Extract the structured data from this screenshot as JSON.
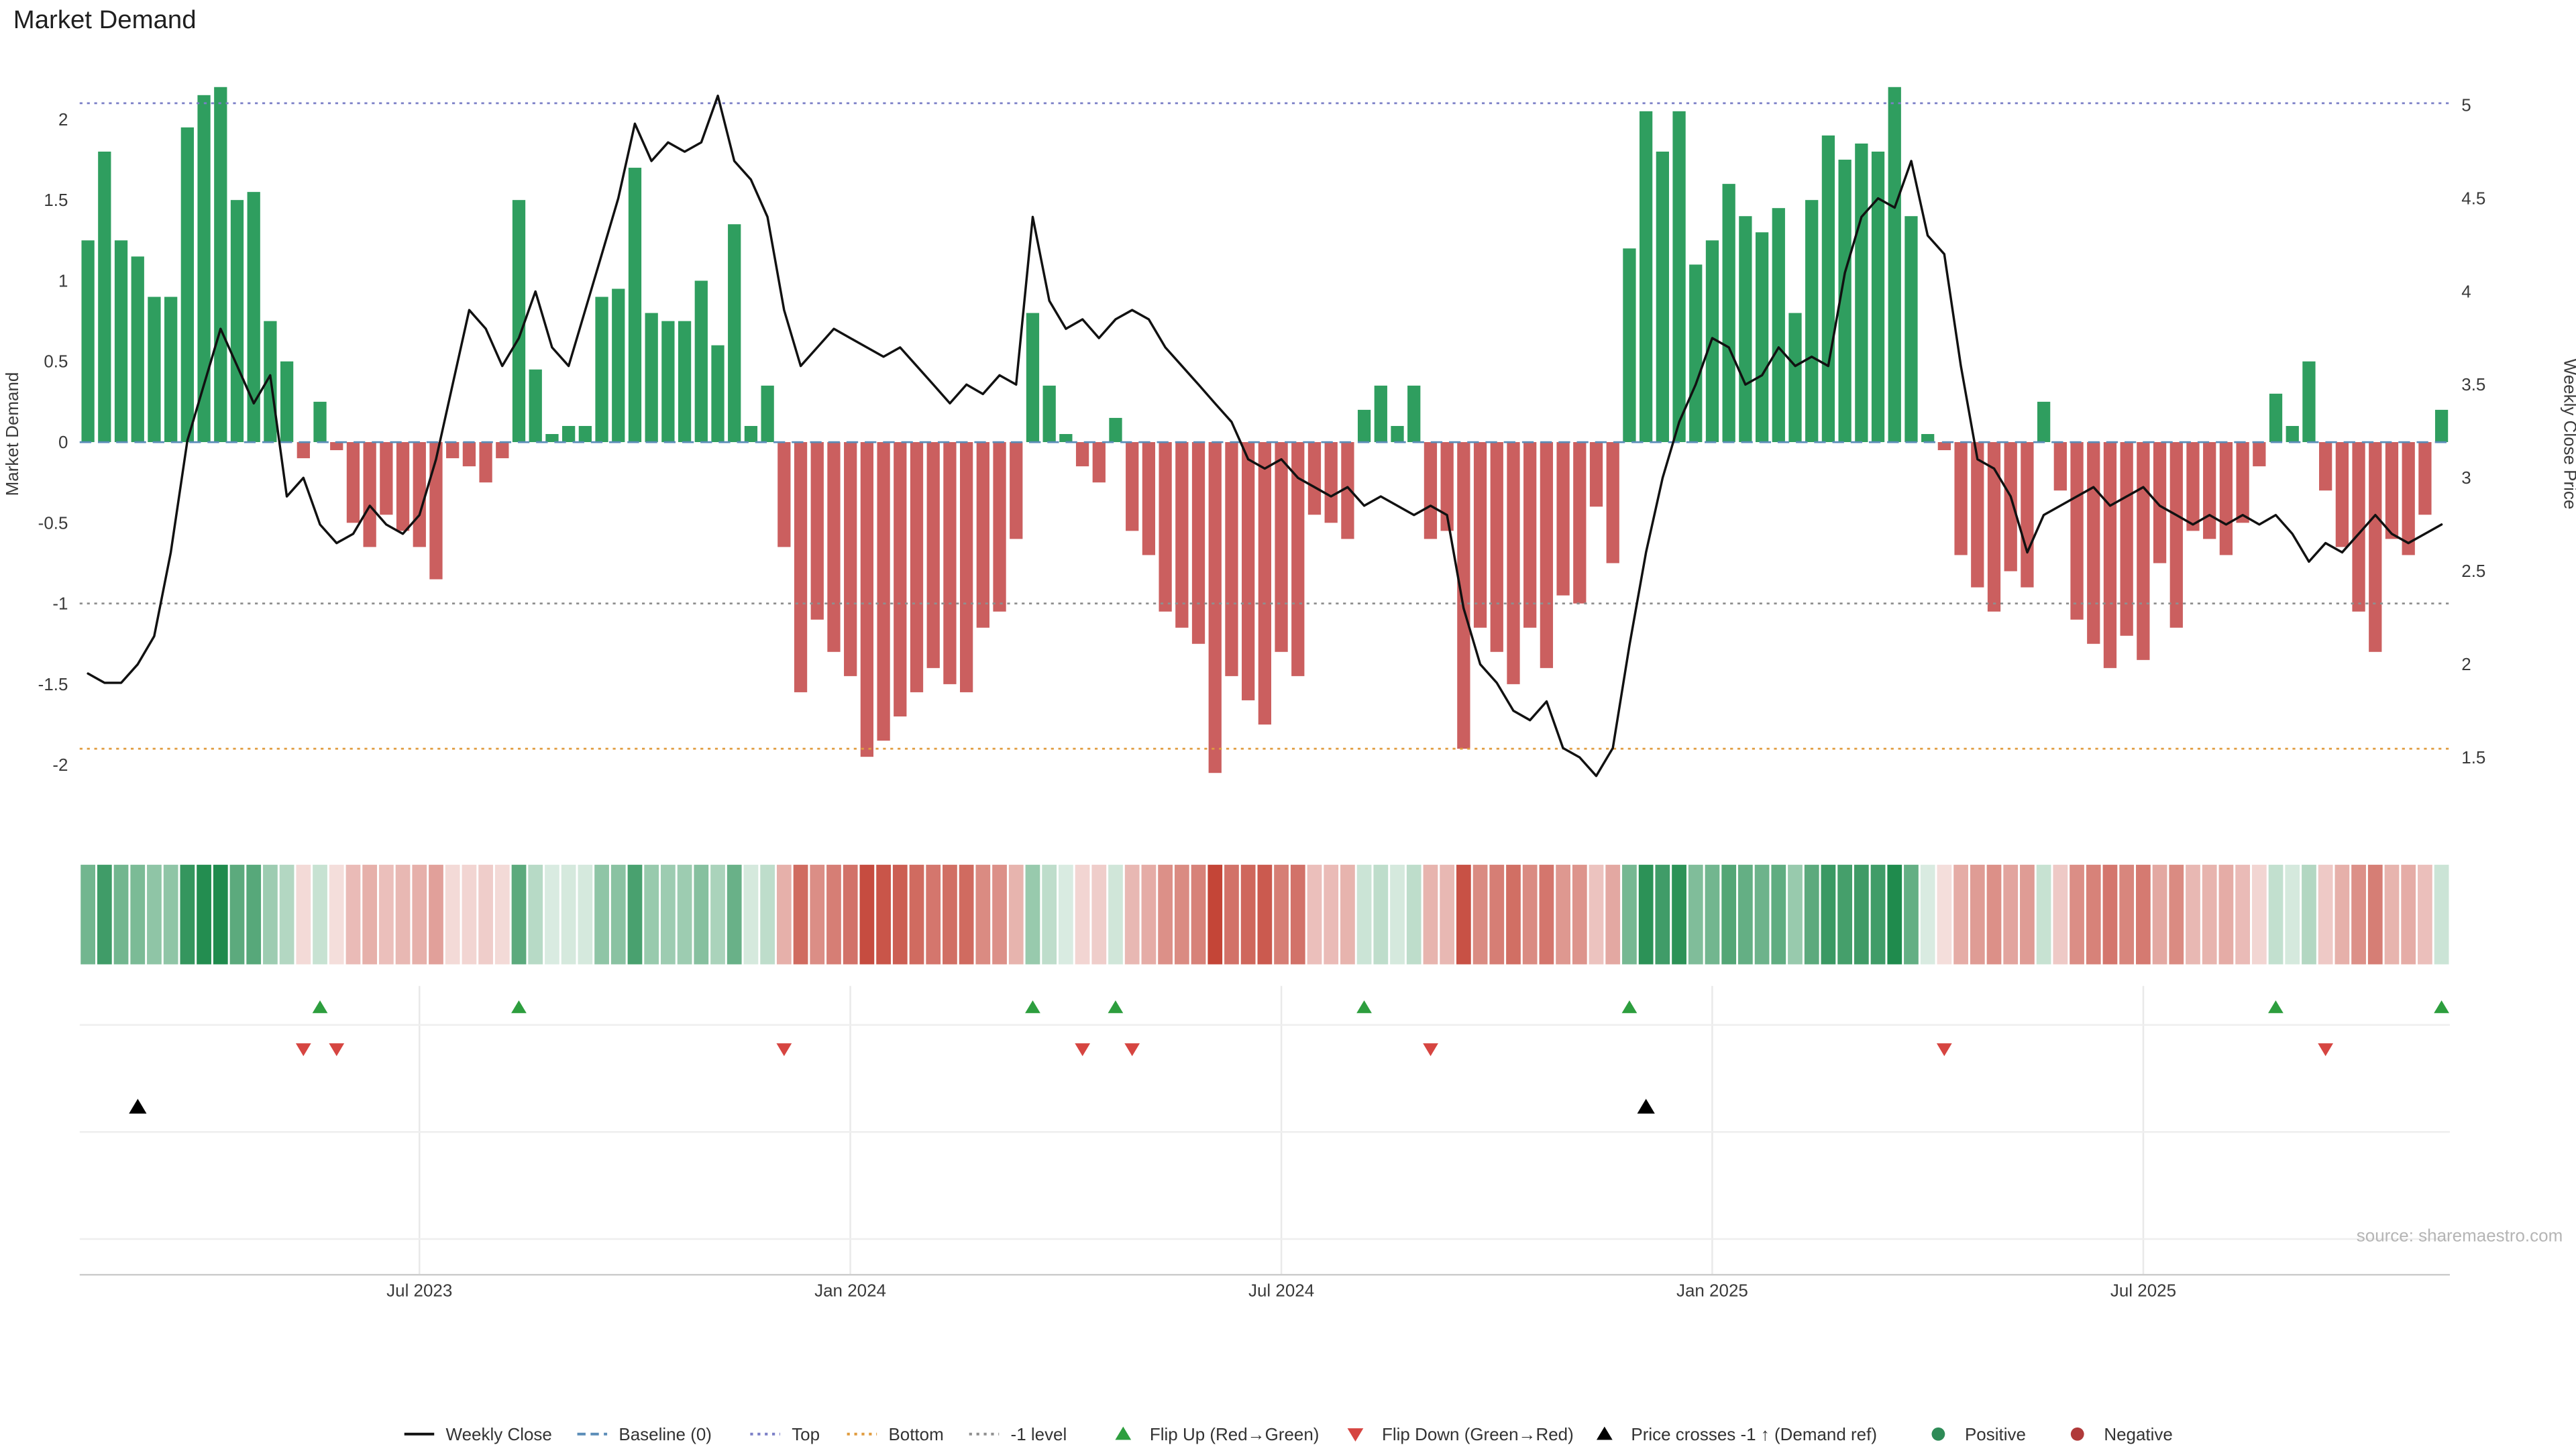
{
  "title": "Market Demand",
  "source": "source: sharemaestro.com",
  "axes": {
    "left_label": "Market Demand",
    "right_label": "Weekly Close Price",
    "left_ticks": [
      2,
      1.5,
      1,
      0.5,
      0,
      -0.5,
      -1,
      -1.5,
      -2
    ],
    "right_ticks": [
      5,
      4.5,
      4,
      3.5,
      3,
      2.5,
      2,
      1.5
    ]
  },
  "colors": {
    "positive": "#2f9e5f",
    "negative": "#cb5f5f",
    "price_line": "#111111",
    "baseline": "#5b8db8",
    "top_line": "#7b7fc7",
    "bottom_line": "#e09c3f",
    "minus1_line": "#8f8f8f",
    "heat_positive": "#1f8b4d",
    "heat_negative": "#c0392b"
  },
  "chart_data": {
    "type": "bar",
    "subtype": "weekly demand bars + price line overlay + intensity heatmap + signal marker rows",
    "n_points": 143,
    "left_range": [
      -2.3,
      2.4
    ],
    "right_range": [
      1.2,
      5.27
    ],
    "grid": "vertical+horizontal faint gridlines in marker panel only",
    "x_ticks": [
      {
        "index": 20,
        "label": "Jul 2023"
      },
      {
        "index": 46,
        "label": "Jan 2024"
      },
      {
        "index": 72,
        "label": "Jul 2024"
      },
      {
        "index": 98,
        "label": "Jan 2025"
      },
      {
        "index": 124,
        "label": "Jul 2025"
      }
    ],
    "series": [
      {
        "name": "Market Demand",
        "type": "bar",
        "axis": "left",
        "values": [
          1.25,
          1.8,
          1.25,
          1.15,
          0.9,
          0.9,
          1.95,
          2.15,
          2.2,
          1.5,
          1.55,
          0.75,
          0.5,
          -0.1,
          0.25,
          -0.05,
          -0.5,
          -0.65,
          -0.45,
          -0.55,
          -0.65,
          -0.85,
          -0.1,
          -0.15,
          -0.25,
          -0.1,
          1.5,
          0.45,
          0.05,
          0.1,
          0.1,
          0.9,
          0.95,
          1.7,
          0.8,
          0.75,
          0.75,
          1.0,
          0.6,
          1.35,
          0.1,
          0.35,
          -0.65,
          -1.55,
          -1.1,
          -1.3,
          -1.45,
          -1.95,
          -1.85,
          -1.7,
          -1.55,
          -1.4,
          -1.5,
          -1.55,
          -1.15,
          -1.05,
          -0.6,
          0.8,
          0.35,
          0.05,
          -0.15,
          -0.25,
          0.15,
          -0.55,
          -0.7,
          -1.05,
          -1.15,
          -1.25,
          -2.05,
          -1.45,
          -1.6,
          -1.75,
          -1.3,
          -1.45,
          -0.45,
          -0.5,
          -0.6,
          0.2,
          0.35,
          0.1,
          0.35,
          -0.6,
          -0.55,
          -1.9,
          -1.15,
          -1.3,
          -1.5,
          -1.15,
          -1.4,
          -0.95,
          -1.0,
          -0.4,
          -0.75,
          1.2,
          2.05,
          1.8,
          2.05,
          1.1,
          1.25,
          1.6,
          1.4,
          1.3,
          1.45,
          0.8,
          1.5,
          1.9,
          1.75,
          1.85,
          1.8,
          2.2,
          1.4,
          0.05,
          -0.05,
          -0.7,
          -0.9,
          -1.05,
          -0.8,
          -0.9,
          0.25,
          -0.3,
          -1.1,
          -1.25,
          -1.4,
          -1.2,
          -1.35,
          -0.75,
          -1.15,
          -0.55,
          -0.6,
          -0.7,
          -0.5,
          -0.15,
          0.3,
          0.1,
          0.5,
          -0.3,
          -0.65,
          -1.05,
          -1.3,
          -0.6,
          -0.7,
          -0.45,
          0.2
        ]
      },
      {
        "name": "Weekly Close",
        "type": "line",
        "axis": "right",
        "values": [
          1.95,
          1.9,
          1.9,
          2.0,
          2.15,
          2.6,
          3.2,
          3.5,
          3.8,
          3.6,
          3.4,
          3.55,
          2.9,
          3.0,
          2.75,
          2.65,
          2.7,
          2.85,
          2.75,
          2.7,
          2.8,
          3.1,
          3.5,
          3.9,
          3.8,
          3.6,
          3.75,
          4.0,
          3.7,
          3.6,
          3.9,
          4.2,
          4.5,
          4.9,
          4.7,
          4.8,
          4.75,
          4.8,
          5.05,
          4.7,
          4.6,
          4.4,
          3.9,
          3.6,
          3.7,
          3.8,
          3.75,
          3.7,
          3.65,
          3.7,
          3.6,
          3.5,
          3.4,
          3.5,
          3.45,
          3.55,
          3.5,
          4.4,
          3.95,
          3.8,
          3.85,
          3.75,
          3.85,
          3.9,
          3.85,
          3.7,
          3.6,
          3.5,
          3.4,
          3.3,
          3.1,
          3.05,
          3.1,
          3.0,
          2.95,
          2.9,
          2.95,
          2.85,
          2.9,
          2.85,
          2.8,
          2.85,
          2.8,
          2.3,
          2.0,
          1.9,
          1.75,
          1.7,
          1.8,
          1.55,
          1.5,
          1.4,
          1.55,
          2.1,
          2.6,
          3.0,
          3.3,
          3.5,
          3.75,
          3.7,
          3.5,
          3.55,
          3.7,
          3.6,
          3.65,
          3.6,
          4.1,
          4.4,
          4.5,
          4.45,
          4.7,
          4.3,
          4.2,
          3.6,
          3.1,
          3.05,
          2.9,
          2.6,
          2.8,
          2.85,
          2.9,
          2.95,
          2.85,
          2.9,
          2.95,
          2.85,
          2.8,
          2.75,
          2.8,
          2.75,
          2.8,
          2.75,
          2.8,
          2.7,
          2.55,
          2.65,
          2.6,
          2.7,
          2.8,
          2.7,
          2.65,
          2.7,
          2.75
        ]
      }
    ],
    "reference_lines": [
      {
        "key": "top",
        "name": "Top",
        "value": 2.1,
        "style": "dotted",
        "color": "#7b7fc7"
      },
      {
        "key": "bottom",
        "name": "Bottom",
        "value": -1.9,
        "style": "dotted",
        "color": "#e09c3f"
      },
      {
        "key": "minus1",
        "name": "-1 level",
        "value": -1,
        "style": "dotted",
        "color": "#8f8f8f"
      },
      {
        "key": "baseline",
        "name": "Baseline (0)",
        "value": 0,
        "style": "dashed",
        "color": "#5b8db8"
      }
    ],
    "markers": {
      "flip_up": {
        "label": "Flip Up (Red→Green)",
        "color": "#2d9e3e",
        "indices": [
          14,
          26,
          57,
          62,
          77,
          93,
          132,
          142
        ]
      },
      "flip_down": {
        "label": "Flip Down (Green→Red)",
        "color": "#d64541",
        "indices": [
          13,
          15,
          42,
          60,
          63,
          81,
          112,
          135
        ]
      },
      "price_cross": {
        "label": "Price crosses -1 ↑ (Demand ref)",
        "color": "#000000",
        "indices": [
          3,
          94
        ]
      }
    },
    "heatmap": {
      "description": "color intensity strip derived from Market Demand bar values",
      "positive_color": "#1f8b4d",
      "negative_color": "#c0392b"
    }
  },
  "legend": {
    "items": [
      {
        "label": "Weekly Close",
        "icon": "line",
        "color": "#111111"
      },
      {
        "label": "Baseline (0)",
        "icon": "dashed-line",
        "color": "#5b8db8"
      },
      {
        "label": "Top",
        "icon": "dotted-line",
        "color": "#7b7fc7"
      },
      {
        "label": "Bottom",
        "icon": "dotted-line",
        "color": "#e09c3f"
      },
      {
        "label": "-1 level",
        "icon": "dotted-line",
        "color": "#8f8f8f"
      },
      {
        "label": "Flip Up (Red→Green)",
        "icon": "triangle-up",
        "color": "#2d9e3e"
      },
      {
        "label": "Flip Down (Green→Red)",
        "icon": "triangle-down",
        "color": "#d64541"
      },
      {
        "label": "Price crosses -1 ↑ (Demand ref)",
        "icon": "triangle-up",
        "color": "#000000"
      },
      {
        "label": "Positive",
        "icon": "dot",
        "color": "#2e8b57"
      },
      {
        "label": "Negative",
        "icon": "dot",
        "color": "#b03a3a"
      }
    ]
  }
}
